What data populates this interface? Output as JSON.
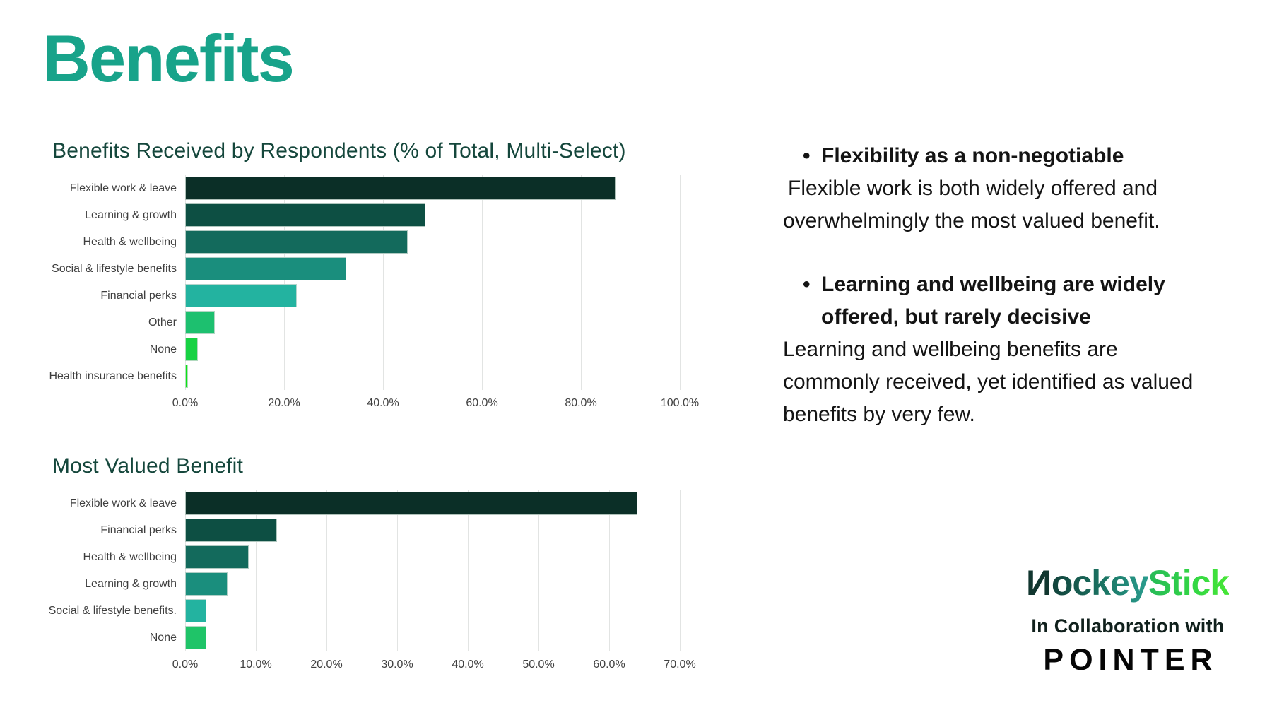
{
  "slide": {
    "title": "Benefits",
    "title_color": "#18a38a",
    "background": "#ffffff",
    "chart_title_color": "#15473c"
  },
  "chart_data": [
    {
      "type": "bar",
      "orientation": "horizontal",
      "title": "Benefits Received by Respondents (% of Total, Multi-Select)",
      "categories": [
        "Flexible work & leave",
        "Learning & growth",
        "Health & wellbeing",
        "Social & lifestyle benefits",
        "Financial perks",
        "Other",
        "None",
        "Health insurance benefits"
      ],
      "values": [
        87,
        48.5,
        45,
        32.5,
        22.5,
        6,
        2.5,
        0.6
      ],
      "unit": "%",
      "xlabel": "",
      "ylabel": "",
      "xlim": [
        0,
        103.7
      ],
      "tick_values": [
        0,
        20,
        40,
        60,
        80,
        100
      ],
      "tick_labels": [
        "0.0%",
        "20.0%",
        "40.0%",
        "60.0%",
        "80.0%",
        "100.0%"
      ],
      "grid": true,
      "legend": false,
      "bar_colors": [
        "#0b2f27",
        "#0d4f43",
        "#136a5c",
        "#1a8e7d",
        "#23b3a0",
        "#1dc06f",
        "#17d243",
        "#0ae414"
      ]
    },
    {
      "type": "bar",
      "orientation": "horizontal",
      "title": "Most Valued Benefit",
      "categories": [
        "Flexible work & leave",
        "Financial perks",
        "Health & wellbeing",
        "Learning & growth",
        "Social & lifestyle benefits.",
        "None"
      ],
      "values": [
        64,
        13,
        9,
        6,
        3,
        3
      ],
      "unit": "%",
      "xlabel": "",
      "ylabel": "",
      "xlim": [
        0,
        72.6
      ],
      "tick_values": [
        0,
        10,
        20,
        30,
        40,
        50,
        60,
        70
      ],
      "tick_labels": [
        "0.0%",
        "10.0%",
        "20.0%",
        "30.0%",
        "40.0%",
        "50.0%",
        "60.0%",
        "70.0%"
      ],
      "grid": true,
      "legend": false,
      "bar_colors": [
        "#0b2f27",
        "#0d4f43",
        "#136a5c",
        "#1a8e7d",
        "#23b3a0",
        "#1fc468"
      ]
    }
  ],
  "insights": {
    "bullets": [
      {
        "headline": "Flexibility as a non-negotiable",
        "body": "Flexible work is both widely offered and overwhelmingly the most valued benefit."
      },
      {
        "headline": "Learning and wellbeing are widely offered, but rarely decisive",
        "body": "Learning and wellbeing benefits are commonly received, yet identified as valued benefits by very few."
      }
    ]
  },
  "branding": {
    "logo_part1": "Hockey",
    "logo_part2": "Stick",
    "logo_gradient": [
      "#11413a",
      "#2a9d8f",
      "#26ba58",
      "#47e636"
    ],
    "collaboration_label": "In Collaboration with",
    "partner_name": "POINTER"
  }
}
